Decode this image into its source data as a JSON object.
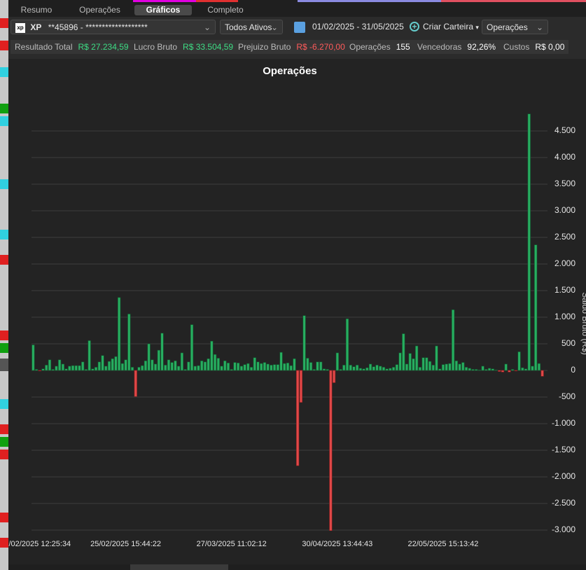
{
  "tabs": [
    "Resumo",
    "Operações",
    "Gráficos",
    "Completo"
  ],
  "toolbar": {
    "broker": "XP",
    "account": "**45896 - *******************",
    "asset_filter": "Todos Ativos",
    "date_range": "01/02/2025 - 31/05/2025",
    "create_portfolio": "Criar Carteira",
    "view": "Operações"
  },
  "stats": [
    {
      "label": "Resultado Total",
      "value": "R$ 27.234,59",
      "color": "#3ddc84"
    },
    {
      "label": "Lucro Bruto",
      "value": "R$ 33.504,59",
      "color": "#3ddc84"
    },
    {
      "label": "Prejuizo Bruto",
      "value": "R$ -6.270,00",
      "color": "#ff5a5a"
    },
    {
      "label": "Operações",
      "value": "155",
      "color": "#ffffff"
    },
    {
      "label": "Vencedoras",
      "value": "92,26%",
      "color": "#ffffff"
    },
    {
      "label": "Custos",
      "value": "R$ 0,00",
      "color": "#ffffff"
    }
  ],
  "chart_data": {
    "type": "bar",
    "title": "Operações",
    "y_label": "Saldo Bruto (R$)",
    "color": "#27ae60",
    "negative_color": "#e04848",
    "grid": true,
    "ylim": [
      -3150,
      5350
    ],
    "yticks": [
      {
        "value": -3000,
        "label": "-3.000"
      },
      {
        "value": -2500,
        "label": "-2.500"
      },
      {
        "value": -2000,
        "label": "-2.000"
      },
      {
        "value": -1500,
        "label": "-1.500"
      },
      {
        "value": -1000,
        "label": "-1.000"
      },
      -500,
      0,
      500,
      {
        "value": 1000,
        "label": "1.000"
      },
      {
        "value": 1500,
        "label": "1.500"
      },
      {
        "value": 2000,
        "label": "2.000"
      },
      {
        "value": 2500,
        "label": "2.500"
      },
      {
        "value": 3000,
        "label": "3.000"
      },
      {
        "value": 3500,
        "label": "3.500"
      },
      {
        "value": 4000,
        "label": "4.000"
      },
      {
        "value": 4500,
        "label": "4.500"
      }
    ],
    "categories": [
      null,
      null,
      "/02/2025 12:25:34",
      null,
      null,
      null,
      null,
      null,
      null,
      null,
      null,
      null,
      null,
      null,
      null,
      null,
      null,
      null,
      null,
      null,
      null,
      null,
      null,
      null,
      null,
      null,
      null,
      null,
      "25/02/2025 15:44:22",
      null,
      null,
      null,
      null,
      null,
      null,
      null,
      null,
      null,
      null,
      null,
      null,
      null,
      null,
      null,
      null,
      null,
      null,
      null,
      null,
      null,
      null,
      null,
      null,
      null,
      null,
      null,
      null,
      null,
      null,
      null,
      "27/03/2025 11:02:12",
      null,
      null,
      null,
      null,
      null,
      null,
      null,
      null,
      null,
      null,
      null,
      null,
      null,
      null,
      null,
      null,
      null,
      null,
      null,
      null,
      null,
      null,
      null,
      null,
      null,
      null,
      null,
      null,
      null,
      null,
      null,
      "30/04/2025 13:44:43",
      null,
      null,
      null,
      null,
      null,
      null,
      null,
      null,
      null,
      null,
      null,
      null,
      null,
      null,
      null,
      null,
      null,
      null,
      null,
      null,
      null,
      null,
      null,
      null,
      null,
      null,
      null,
      null,
      null,
      null,
      null,
      "22/05/2025 15:13:42",
      null,
      null,
      null,
      null,
      null,
      null,
      null,
      null,
      null,
      null,
      null,
      null,
      null,
      null,
      null,
      null,
      null,
      null,
      null,
      null,
      null,
      null,
      null,
      null,
      null,
      null,
      null,
      null,
      null,
      null
    ],
    "values": [
      480,
      20,
      -10,
      30,
      100,
      200,
      20,
      80,
      200,
      120,
      30,
      80,
      90,
      90,
      90,
      160,
      20,
      560,
      30,
      60,
      160,
      280,
      80,
      170,
      220,
      260,
      1370,
      130,
      200,
      1060,
      60,
      -490,
      60,
      90,
      180,
      500,
      200,
      120,
      380,
      700,
      100,
      200,
      150,
      180,
      80,
      330,
      20,
      160,
      860,
      80,
      90,
      180,
      160,
      220,
      550,
      300,
      230,
      80,
      180,
      140,
      20,
      150,
      140,
      80,
      110,
      130,
      60,
      240,
      160,
      130,
      150,
      120,
      100,
      110,
      110,
      340,
      130,
      140,
      90,
      220,
      -1790,
      -600,
      1030,
      230,
      150,
      20,
      160,
      160,
      30,
      20,
      -3010,
      -230,
      330,
      20,
      100,
      970,
      100,
      70,
      100,
      40,
      30,
      50,
      120,
      70,
      100,
      80,
      60,
      30,
      40,
      60,
      110,
      330,
      690,
      120,
      320,
      220,
      460,
      60,
      240,
      240,
      170,
      100,
      460,
      30,
      110,
      120,
      130,
      1140,
      180,
      120,
      150,
      60,
      40,
      20,
      20,
      10,
      80,
      20,
      40,
      30,
      10,
      -20,
      -30,
      120,
      -30,
      20,
      -10,
      350,
      50,
      30,
      4820,
      80,
      2360,
      130,
      -110
    ]
  }
}
